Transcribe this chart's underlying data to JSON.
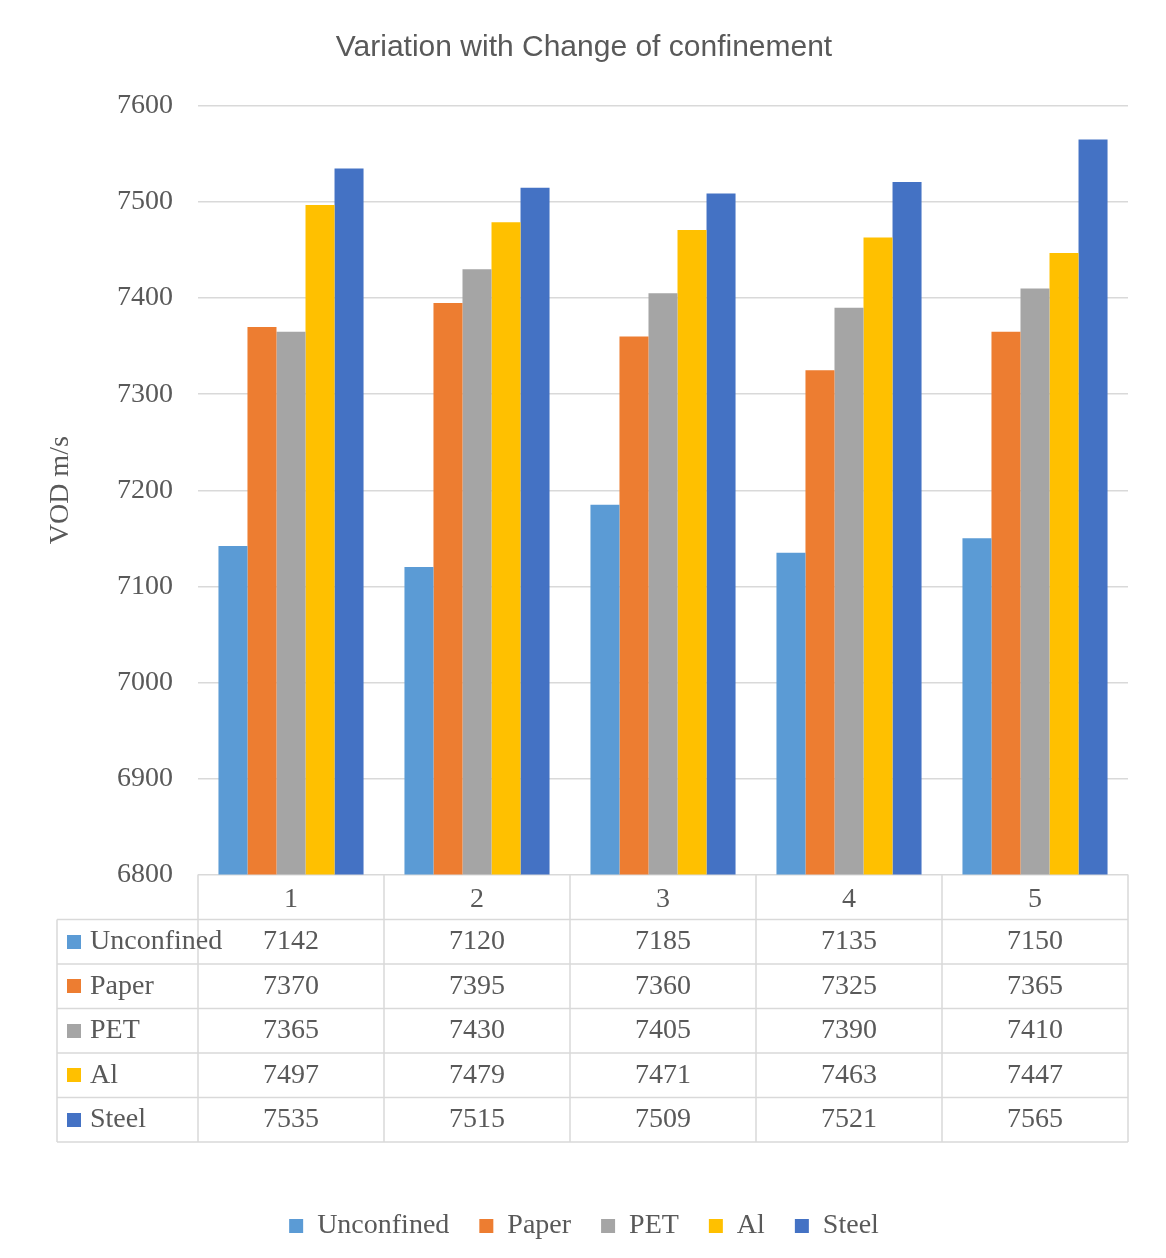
{
  "chart_data": {
    "type": "bar",
    "title": "Variation with Change of confinement",
    "ylabel": "VOD m/s",
    "categories": [
      "1",
      "2",
      "3",
      "4",
      "5"
    ],
    "series": [
      {
        "name": "Unconfined",
        "color": "#5b9bd5",
        "values": [
          7142,
          7120,
          7185,
          7135,
          7150
        ]
      },
      {
        "name": "Paper",
        "color": "#ed7d31",
        "values": [
          7370,
          7395,
          7360,
          7325,
          7365
        ]
      },
      {
        "name": "PET",
        "color": "#a5a5a5",
        "values": [
          7365,
          7430,
          7405,
          7390,
          7410
        ]
      },
      {
        "name": "Al",
        "color": "#ffc000",
        "values": [
          7497,
          7479,
          7471,
          7463,
          7447
        ]
      },
      {
        "name": "Steel",
        "color": "#4472c4",
        "values": [
          7535,
          7515,
          7509,
          7521,
          7565
        ]
      }
    ],
    "ylim": [
      6800,
      7600
    ],
    "yticks": [
      6800,
      6900,
      7000,
      7100,
      7200,
      7300,
      7400,
      7500,
      7600
    ],
    "grid": "y",
    "legend": "bottom",
    "data_labels": true
  }
}
